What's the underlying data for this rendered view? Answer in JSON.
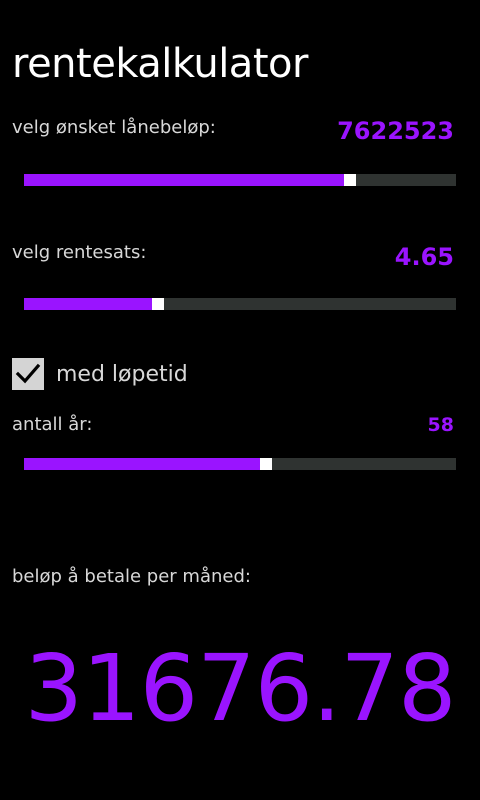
{
  "app": {
    "title": "rentekalkulator"
  },
  "loan": {
    "label": "velg ønsket lånebeløp:",
    "value": "7622523",
    "fraction": 0.755
  },
  "rate": {
    "label": "velg rentesats:",
    "value": "4.65",
    "fraction": 0.31
  },
  "term_toggle": {
    "label": "med løpetid",
    "checked": true
  },
  "years": {
    "label": "antall år:",
    "value": "58",
    "fraction": 0.56
  },
  "result": {
    "label": "beløp å betale per måned:",
    "value": "31676.78"
  },
  "colors": {
    "accent": "#9a14ff",
    "track": "#2f3331",
    "thumb": "#ffffff",
    "background": "#000000"
  }
}
